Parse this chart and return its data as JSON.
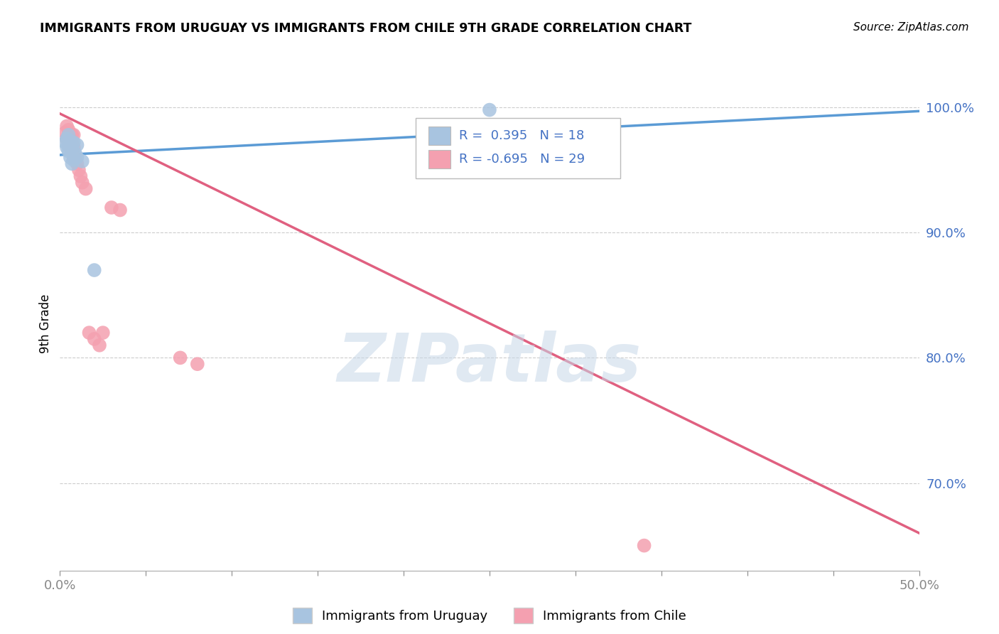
{
  "title": "IMMIGRANTS FROM URUGUAY VS IMMIGRANTS FROM CHILE 9TH GRADE CORRELATION CHART",
  "source": "Source: ZipAtlas.com",
  "ylabel": "9th Grade",
  "xlim": [
    0.0,
    0.5
  ],
  "ylim": [
    0.63,
    1.025
  ],
  "yticks": [
    0.7,
    0.8,
    0.9,
    1.0
  ],
  "ytick_labels": [
    "70.0%",
    "80.0%",
    "90.0%",
    "100.0%"
  ],
  "xticks": [
    0.0,
    0.05,
    0.1,
    0.15,
    0.2,
    0.25,
    0.3,
    0.35,
    0.4,
    0.45,
    0.5
  ],
  "legend_R_uruguay": "R =  0.395",
  "legend_N_uruguay": "N = 18",
  "legend_R_chile": "R = -0.695",
  "legend_N_chile": "N = 29",
  "uruguay_color": "#a8c4e0",
  "chile_color": "#f4a0b0",
  "uruguay_line_color": "#5b9bd5",
  "chile_line_color": "#e06080",
  "watermark": "ZIPatlas",
  "watermark_color": "#c8d8e8",
  "uruguay_x": [
    0.003,
    0.004,
    0.004,
    0.005,
    0.005,
    0.005,
    0.006,
    0.006,
    0.007,
    0.007,
    0.008,
    0.008,
    0.009,
    0.01,
    0.01,
    0.013,
    0.02,
    0.25
  ],
  "uruguay_y": [
    0.972,
    0.968,
    0.975,
    0.97,
    0.965,
    0.978,
    0.96,
    0.973,
    0.955,
    0.968,
    0.958,
    0.972,
    0.963,
    0.96,
    0.97,
    0.957,
    0.87,
    0.998
  ],
  "chile_x": [
    0.003,
    0.004,
    0.004,
    0.005,
    0.005,
    0.005,
    0.006,
    0.006,
    0.007,
    0.007,
    0.007,
    0.008,
    0.008,
    0.008,
    0.009,
    0.01,
    0.011,
    0.012,
    0.013,
    0.015,
    0.017,
    0.02,
    0.023,
    0.025,
    0.03,
    0.035,
    0.07,
    0.08,
    0.34
  ],
  "chile_y": [
    0.98,
    0.975,
    0.985,
    0.978,
    0.97,
    0.982,
    0.968,
    0.975,
    0.965,
    0.972,
    0.978,
    0.96,
    0.968,
    0.978,
    0.958,
    0.955,
    0.95,
    0.945,
    0.94,
    0.935,
    0.82,
    0.815,
    0.81,
    0.82,
    0.92,
    0.918,
    0.8,
    0.795,
    0.65
  ],
  "uruguay_line_x": [
    0.0,
    0.5
  ],
  "uruguay_line_y": [
    0.962,
    0.997
  ],
  "chile_line_x": [
    0.0,
    0.5
  ],
  "chile_line_y": [
    0.995,
    0.66
  ]
}
